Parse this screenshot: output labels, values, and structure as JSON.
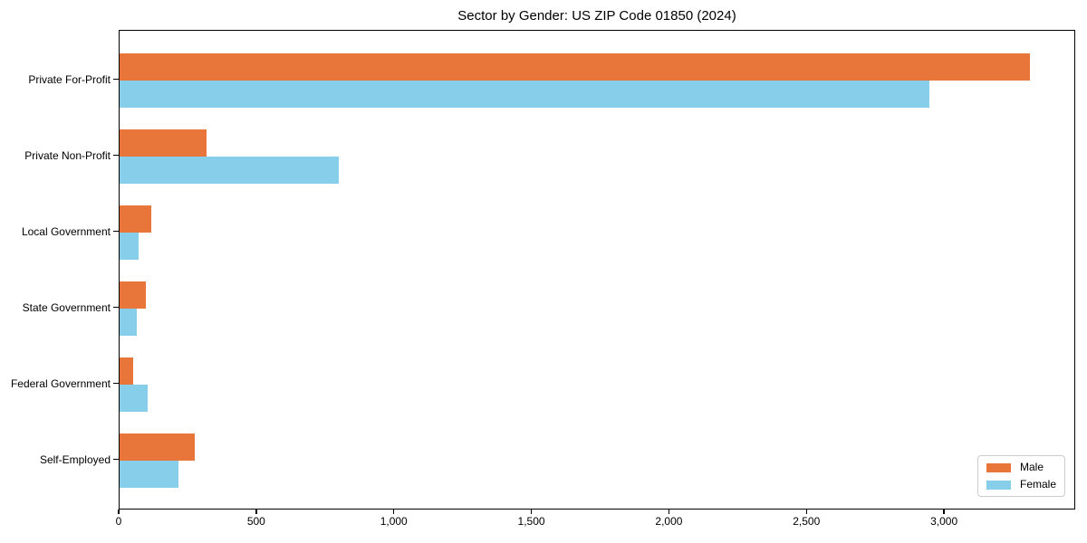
{
  "title": "Sector by Gender: US ZIP Code 01850 (2024)",
  "colors": {
    "male": "#E8763B",
    "female": "#87CEEB",
    "axis": "#000000",
    "legend_border": "#CCCCCC",
    "background": "#FFFFFF"
  },
  "chart_data": {
    "type": "bar",
    "orientation": "horizontal",
    "title": "Sector by Gender: US ZIP Code 01850 (2024)",
    "xlabel": "",
    "ylabel": "",
    "categories": [
      "Private For-Profit",
      "Private Non-Profit",
      "Local Government",
      "State Government",
      "Federal Government",
      "Self-Employed"
    ],
    "series": [
      {
        "name": "Male",
        "color": "#E8763B",
        "values": [
          3310,
          315,
          114,
          97,
          48,
          273
        ]
      },
      {
        "name": "Female",
        "color": "#87CEEB",
        "values": [
          2944,
          796,
          70,
          62,
          103,
          215
        ]
      }
    ],
    "xlim": [
      0,
      3477
    ],
    "xticks": [
      0,
      500,
      1000,
      1500,
      2000,
      2500,
      3000
    ],
    "xtick_labels": [
      "0",
      "500",
      "1,000",
      "1,500",
      "2,000",
      "2,500",
      "3,000"
    ],
    "grid": false,
    "legend_position": "lower right"
  }
}
